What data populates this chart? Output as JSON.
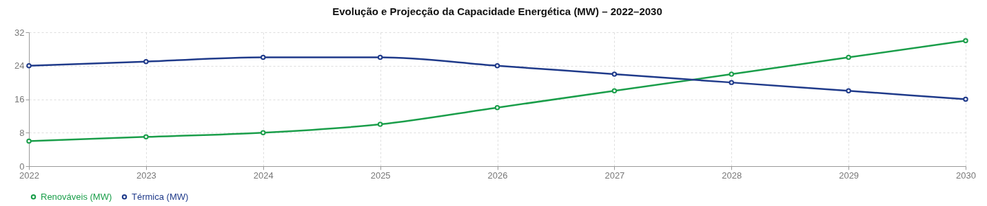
{
  "chart_data": {
    "type": "line",
    "title": "Evolução e Projecção da Capacidade Energética (MW) – 2022–2030",
    "x": [
      2022,
      2023,
      2024,
      2025,
      2026,
      2027,
      2028,
      2029,
      2030
    ],
    "xlim": [
      2022,
      2030
    ],
    "xticks": [
      2022,
      2023,
      2024,
      2025,
      2026,
      2027,
      2028,
      2029,
      2030
    ],
    "ylim": [
      0,
      32
    ],
    "yticks": [
      0,
      8,
      16,
      24,
      32
    ],
    "series": [
      {
        "name": "Renováveis (MW)",
        "color": "#1a9e4a",
        "values": [
          6,
          7,
          8,
          10,
          14,
          18,
          22,
          26,
          30
        ]
      },
      {
        "name": "Térmica (MW)",
        "color": "#1f3a8a",
        "values": [
          24,
          25,
          26,
          26,
          24,
          22,
          20,
          18,
          16
        ]
      }
    ],
    "grid": true,
    "legend": "bottom",
    "marker": "circle",
    "line_style": "solid"
  }
}
